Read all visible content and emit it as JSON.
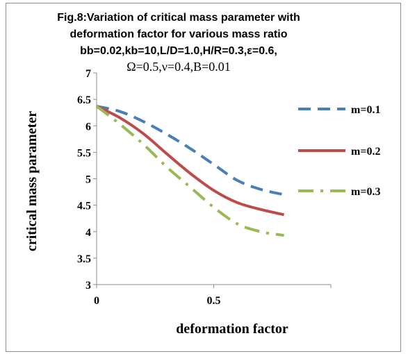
{
  "chart_data": {
    "type": "line",
    "title_lines": [
      "Fig.8:Variation of critical mass parameter with",
      "deformation factor for various mass ratio",
      "bb=0.02,kb=10,L/D=1.0,H/R=0.3,ε=0.6,",
      "Ω=0.5,ν=0.4,B=0.01"
    ],
    "xlabel": "deformation factor",
    "ylabel": "critical mass parameter",
    "xlim": [
      0,
      1
    ],
    "ylim": [
      3,
      7
    ],
    "x_ticks": [
      "0",
      "0.5"
    ],
    "x_tick_values": [
      0,
      0.5
    ],
    "y_ticks": [
      "3",
      "3.5",
      "4",
      "4.5",
      "5",
      "5.5",
      "6",
      "6.5",
      "7"
    ],
    "y_tick_values": [
      3,
      3.5,
      4,
      4.5,
      5,
      5.5,
      6,
      6.5,
      7
    ],
    "grid": false,
    "legend_position": "right",
    "series": [
      {
        "name": "m=0.1",
        "color": "#4a7ebb",
        "dash": "dashed",
        "x": [
          0,
          0.1,
          0.2,
          0.3,
          0.4,
          0.5,
          0.6,
          0.7,
          0.8
        ],
        "y": [
          6.37,
          6.27,
          6.08,
          5.84,
          5.57,
          5.27,
          4.97,
          4.8,
          4.7
        ]
      },
      {
        "name": "m=0.2",
        "color": "#be4b48",
        "dash": "solid",
        "x": [
          0,
          0.1,
          0.2,
          0.3,
          0.4,
          0.5,
          0.6,
          0.7,
          0.8
        ],
        "y": [
          6.37,
          6.15,
          5.85,
          5.47,
          5.1,
          4.78,
          4.55,
          4.42,
          4.32
        ]
      },
      {
        "name": "m=0.3",
        "color": "#98b954",
        "dash": "dashdot",
        "x": [
          0,
          0.1,
          0.2,
          0.3,
          0.4,
          0.5,
          0.6,
          0.7,
          0.8
        ],
        "y": [
          6.37,
          6.03,
          5.65,
          5.22,
          4.84,
          4.46,
          4.15,
          4.0,
          3.93
        ]
      }
    ]
  }
}
